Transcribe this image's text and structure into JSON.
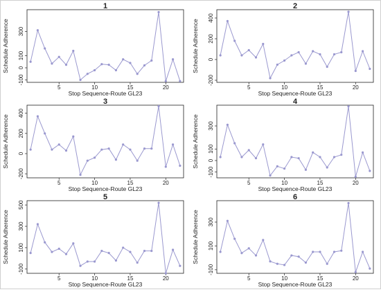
{
  "colors": {
    "series": "#9a98cf",
    "axis": "#222222"
  },
  "chart_data": [
    {
      "type": "line",
      "title": "1",
      "xlabel": "Stop Sequence-Route GL23",
      "ylabel": "Schedule Adherence",
      "xlim": [
        0.5,
        22.5
      ],
      "ylim": [
        -120,
        480
      ],
      "xticks": [
        5,
        10,
        15,
        20
      ],
      "xtick_labels": [
        "5",
        "10",
        "15",
        "20"
      ],
      "yticks": [
        -100,
        0,
        100,
        300
      ],
      "ytick_labels": [
        "-100",
        "0",
        "100",
        "300"
      ],
      "grid": false,
      "series": [
        {
          "x": [
            1,
            2,
            3,
            4,
            5,
            6,
            7,
            8,
            9,
            10,
            11,
            12,
            13,
            14,
            15,
            16,
            17,
            18,
            19,
            20,
            21,
            22
          ],
          "values": [
            50,
            310,
            160,
            35,
            90,
            25,
            140,
            -100,
            -50,
            -20,
            30,
            25,
            -20,
            70,
            40,
            -50,
            20,
            60,
            460,
            -110,
            70,
            -110
          ]
        }
      ]
    },
    {
      "type": "line",
      "title": "2",
      "xlabel": "Stop Sequence-Route GL23",
      "ylabel": "Schedule Adherence",
      "xlim": [
        0.5,
        22.5
      ],
      "ylim": [
        -220,
        480
      ],
      "xticks": [
        5,
        10,
        15,
        20
      ],
      "xtick_labels": [
        "5",
        "10",
        "15",
        "20"
      ],
      "yticks": [
        -200,
        0,
        200,
        400
      ],
      "ytick_labels": [
        "-200",
        "0",
        "200",
        "400"
      ],
      "grid": false,
      "series": [
        {
          "x": [
            1,
            2,
            3,
            4,
            5,
            6,
            7,
            8,
            9,
            10,
            11,
            12,
            13,
            14,
            15,
            16,
            17,
            18,
            19,
            20,
            21,
            22
          ],
          "values": [
            40,
            370,
            180,
            40,
            90,
            20,
            150,
            -180,
            -50,
            -10,
            40,
            70,
            -40,
            80,
            50,
            -70,
            50,
            70,
            460,
            -110,
            80,
            -90
          ]
        }
      ]
    },
    {
      "type": "line",
      "title": "3",
      "xlabel": "Stop Sequence-Route GL23",
      "ylabel": "Schedule Adherence",
      "xlim": [
        0.5,
        22.5
      ],
      "ylim": [
        -240,
        480
      ],
      "xticks": [
        5,
        10,
        15,
        20
      ],
      "xtick_labels": [
        "5",
        "10",
        "15",
        "20"
      ],
      "yticks": [
        -200,
        0,
        200,
        400
      ],
      "ytick_labels": [
        "-200",
        "0",
        "200",
        "400"
      ],
      "grid": false,
      "series": [
        {
          "x": [
            1,
            2,
            3,
            4,
            5,
            6,
            7,
            8,
            9,
            10,
            11,
            12,
            13,
            14,
            15,
            16,
            17,
            18,
            19,
            20,
            21,
            22
          ],
          "values": [
            40,
            370,
            200,
            40,
            90,
            30,
            170,
            -210,
            -70,
            -40,
            40,
            50,
            -60,
            90,
            40,
            -70,
            50,
            50,
            470,
            -130,
            90,
            -120
          ]
        }
      ]
    },
    {
      "type": "line",
      "title": "4",
      "xlabel": "Stop Sequence-Route GL23",
      "ylabel": "Schedule Adherence",
      "xlim": [
        0.5,
        22.5
      ],
      "ylim": [
        -150,
        480
      ],
      "xticks": [
        5,
        10,
        15,
        20
      ],
      "xtick_labels": [
        "5",
        "10",
        "15",
        "20"
      ],
      "yticks": [
        -100,
        0,
        100,
        300
      ],
      "ytick_labels": [
        "-100",
        "0",
        "100",
        "300"
      ],
      "grid": false,
      "series": [
        {
          "x": [
            1,
            2,
            3,
            4,
            5,
            6,
            7,
            8,
            9,
            10,
            11,
            12,
            13,
            14,
            15,
            16,
            17,
            18,
            19,
            20,
            21,
            22
          ],
          "values": [
            30,
            310,
            150,
            30,
            90,
            20,
            140,
            -130,
            -50,
            -70,
            30,
            20,
            -80,
            70,
            30,
            -60,
            30,
            50,
            470,
            -140,
            70,
            -90
          ]
        }
      ]
    },
    {
      "type": "line",
      "title": "5",
      "xlabel": "Stop Sequence-Route GL23",
      "ylabel": "Schedule Adherence",
      "xlim": [
        0.5,
        22.5
      ],
      "ylim": [
        -140,
        540
      ],
      "xticks": [
        5,
        10,
        15,
        20
      ],
      "xtick_labels": [
        "5",
        "10",
        "15",
        "20"
      ],
      "yticks": [
        -100,
        100,
        300,
        500
      ],
      "ytick_labels": [
        "-100",
        "100",
        "300",
        "500"
      ],
      "grid": false,
      "series": [
        {
          "x": [
            1,
            2,
            3,
            4,
            5,
            6,
            7,
            8,
            9,
            10,
            11,
            12,
            13,
            14,
            15,
            16,
            17,
            18,
            19,
            20,
            21,
            22
          ],
          "values": [
            50,
            320,
            150,
            60,
            90,
            40,
            140,
            -70,
            -30,
            -30,
            70,
            50,
            -20,
            100,
            60,
            -40,
            70,
            70,
            520,
            -140,
            80,
            -70
          ]
        }
      ]
    },
    {
      "type": "line",
      "title": "6",
      "xlabel": "Stop Sequence-Route GL23",
      "ylabel": "Schedule Adherence",
      "xlim": [
        0.5,
        22.5
      ],
      "ylim": [
        -130,
        480
      ],
      "xticks": [
        5,
        10,
        15,
        20
      ],
      "xtick_labels": [
        "5",
        "10",
        "15",
        "20"
      ],
      "yticks": [
        -100,
        100,
        300
      ],
      "ytick_labels": [
        "-100",
        "100",
        "300"
      ],
      "grid": false,
      "series": [
        {
          "x": [
            1,
            2,
            3,
            4,
            5,
            6,
            7,
            8,
            9,
            10,
            11,
            12,
            13,
            14,
            15,
            16,
            17,
            18,
            19,
            20,
            21,
            22
          ],
          "values": [
            50,
            310,
            160,
            40,
            80,
            20,
            150,
            -30,
            -50,
            -60,
            20,
            10,
            -40,
            50,
            50,
            -50,
            50,
            60,
            460,
            -120,
            50,
            -90
          ]
        }
      ]
    }
  ]
}
